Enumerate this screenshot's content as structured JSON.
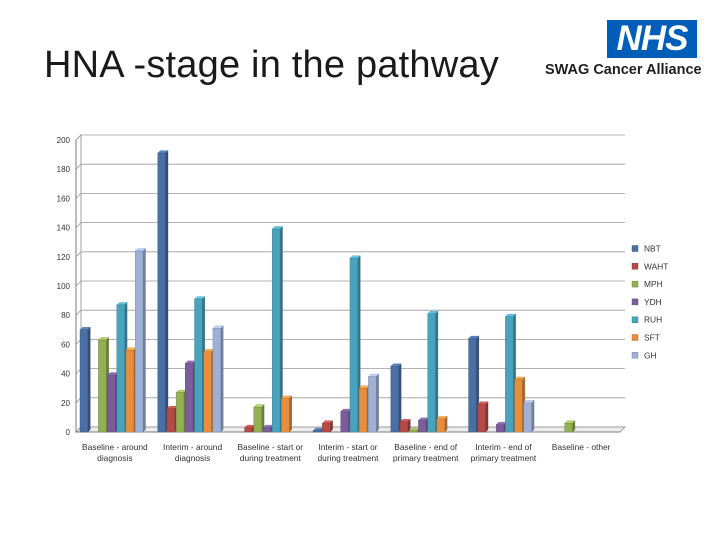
{
  "page": {
    "title": "HNA -stage in the pathway",
    "logo": {
      "mark": "NHS",
      "org": "SWAG Cancer Alliance",
      "color": "#005eb8"
    }
  },
  "chart_data": {
    "type": "bar",
    "title": "",
    "xlabel": "",
    "ylabel": "",
    "ylim": [
      0,
      200
    ],
    "yticks": [
      0,
      20,
      40,
      60,
      80,
      100,
      120,
      140,
      160,
      180,
      200
    ],
    "grid": true,
    "legend": "right",
    "categories": [
      [
        "Baseline - around",
        "diagnosis"
      ],
      [
        "Interim - around",
        "diagnosis"
      ],
      [
        "Baseline - start or",
        "during treatment"
      ],
      [
        "Interim - start or",
        "during treatment"
      ],
      [
        "Baseline - end of",
        "primary treatment"
      ],
      [
        "Interim - end of",
        "primary treatment"
      ],
      [
        "Baseline - other"
      ]
    ],
    "series": [
      {
        "name": "NBT",
        "color": "#4a6fa5",
        "values": [
          70,
          191,
          0,
          1,
          45,
          64,
          0
        ]
      },
      {
        "name": "WAHT",
        "color": "#b44b48",
        "values": [
          0,
          16,
          3,
          6,
          7,
          19,
          0
        ]
      },
      {
        "name": "MPH",
        "color": "#93b054",
        "values": [
          63,
          27,
          17,
          0,
          1,
          0,
          6
        ]
      },
      {
        "name": "YDH",
        "color": "#7a5d9a",
        "values": [
          39,
          47,
          3,
          14,
          8,
          5,
          0
        ]
      },
      {
        "name": "RUH",
        "color": "#4aa3bd",
        "values": [
          87,
          91,
          139,
          119,
          81,
          79,
          0
        ]
      },
      {
        "name": "SFT",
        "color": "#e58f3e",
        "values": [
          56,
          55,
          23,
          30,
          9,
          36,
          0
        ]
      },
      {
        "name": "GH",
        "color": "#9fb0d6",
        "values": [
          124,
          71,
          0,
          38,
          0,
          20,
          0
        ]
      }
    ]
  }
}
